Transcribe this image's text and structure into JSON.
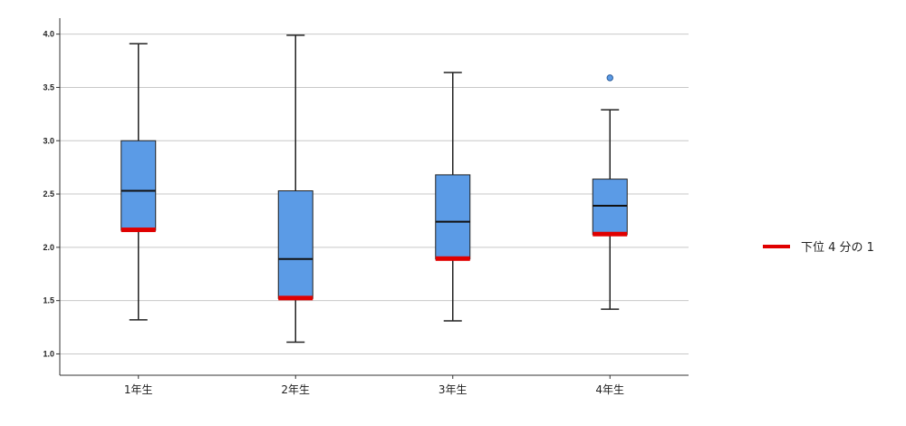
{
  "chart_data": {
    "type": "boxplot",
    "title": "",
    "xlabel": "",
    "ylabel": "",
    "ylim": [
      0.8,
      4.15
    ],
    "yticks": [
      "1.0",
      "1.5",
      "2.0",
      "2.5",
      "3.0",
      "3.5",
      "4.0"
    ],
    "grid": true,
    "legend_position": "right",
    "categories": [
      "1年生",
      "2年生",
      "3年生",
      "4年生"
    ],
    "boxes": [
      {
        "category": "1年生",
        "min": 1.32,
        "q1": 2.16,
        "median": 2.53,
        "q3": 3.0,
        "max": 3.91,
        "outliers": []
      },
      {
        "category": "2年生",
        "min": 1.11,
        "q1": 1.52,
        "median": 1.89,
        "q3": 2.53,
        "max": 3.99,
        "outliers": []
      },
      {
        "category": "3年生",
        "min": 1.31,
        "q1": 1.89,
        "median": 2.24,
        "q3": 2.68,
        "max": 3.64,
        "outliers": []
      },
      {
        "category": "4年生",
        "min": 1.42,
        "q1": 2.12,
        "median": 2.39,
        "q3": 2.64,
        "max": 3.29,
        "outliers": [
          3.59
        ]
      }
    ],
    "legend": [
      {
        "label": "下位 4 分の 1",
        "color": "#e00000"
      }
    ],
    "colors": {
      "box_fill": "#5b9be6",
      "box_stroke": "#222222",
      "median": "#111111",
      "lower_quartile_marker": "#e00000",
      "grid": "#c8c8c8",
      "outlier": "#5b9be6"
    }
  }
}
